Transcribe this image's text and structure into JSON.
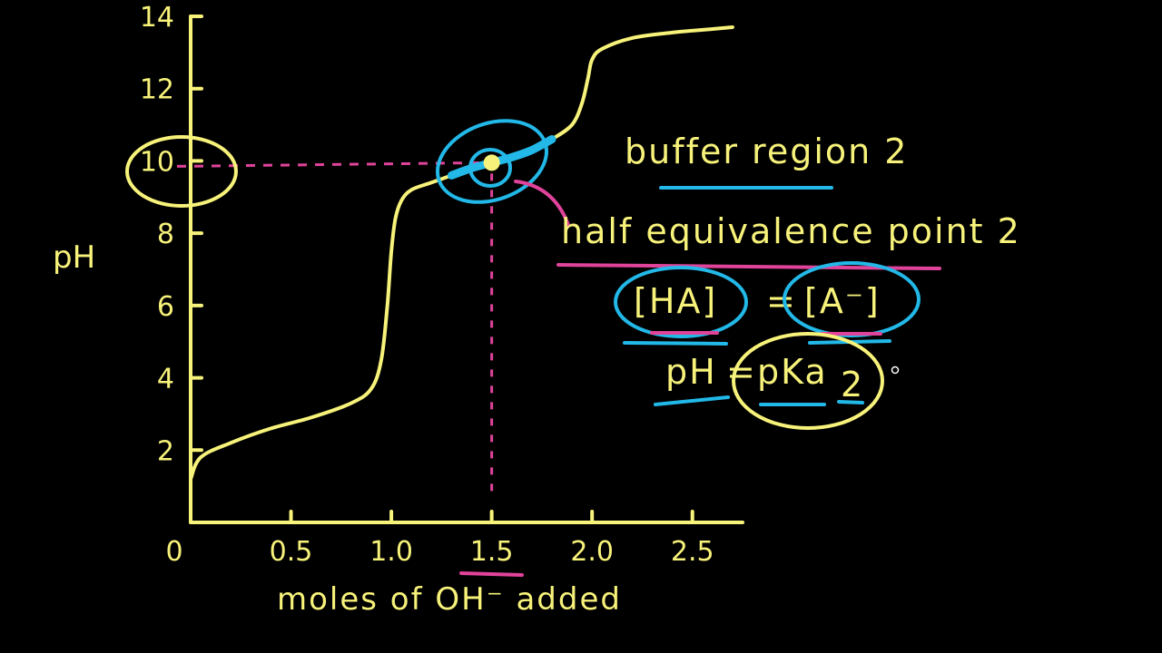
{
  "chart_data": {
    "type": "line",
    "title": "",
    "xlabel": "moles of OH⁻ added",
    "ylabel": "pH",
    "xlim": [
      0,
      2.75
    ],
    "ylim": [
      0,
      14
    ],
    "x_ticks": [
      "0",
      "0.5",
      "1.0",
      "1.5",
      "2.0",
      "2.5"
    ],
    "x_tick_values": [
      0,
      0.5,
      1.0,
      1.5,
      2.0,
      2.5
    ],
    "y_ticks": [
      "2",
      "4",
      "6",
      "8",
      "10",
      "12",
      "14"
    ],
    "y_tick_values": [
      2,
      4,
      6,
      8,
      10,
      12,
      14
    ],
    "grid": false,
    "series": [
      {
        "x": [
          0,
          0.05,
          0.2,
          0.4,
          0.6,
          0.8,
          0.9,
          0.95,
          0.98,
          1.0,
          1.02,
          1.05,
          1.1,
          1.2,
          1.3,
          1.4,
          1.5,
          1.6,
          1.7,
          1.8,
          1.9,
          1.95,
          1.98,
          2.0,
          2.05,
          2.2,
          2.4,
          2.6,
          2.7
        ],
        "y": [
          1.2,
          1.8,
          2.2,
          2.6,
          2.9,
          3.3,
          3.7,
          4.5,
          6.0,
          7.5,
          8.4,
          8.9,
          9.2,
          9.4,
          9.6,
          9.8,
          9.95,
          10.1,
          10.3,
          10.6,
          11.0,
          11.6,
          12.3,
          12.8,
          13.1,
          13.4,
          13.55,
          13.65,
          13.7
        ]
      }
    ],
    "marker_point": {
      "x": 1.5,
      "y": 9.95
    },
    "ph_highlight_label": "10"
  },
  "annotations": {
    "buffer_region": "buffer region 2",
    "half_equivalence": "half equivalence point 2",
    "eq_left": "[HA]",
    "eq_sign": "=",
    "eq_right": "[A⁻]",
    "ph_eq_left": "pH",
    "ph_eq_sign": "=",
    "ph_eq_right": "pKa",
    "ph_eq_subscript": "2"
  },
  "colors": {
    "yellow": "#f7f27a",
    "blue": "#22b8e8",
    "pink": "#e0439a",
    "background": "#000000"
  }
}
